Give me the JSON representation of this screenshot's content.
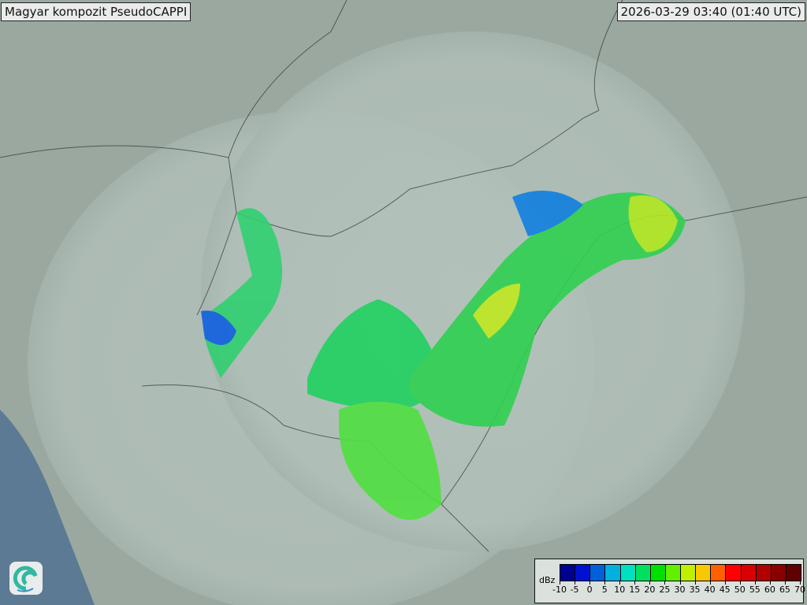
{
  "title": "Magyar kompozit  PseudoCAPPI",
  "timestamp": "2026-03-29 03:40 (01:40 UTC)",
  "legend": {
    "unit": "dBz",
    "ticks": [
      "-10",
      "-5",
      "0",
      "5",
      "10",
      "15",
      "20",
      "25",
      "30",
      "35",
      "40",
      "45",
      "50",
      "55",
      "60",
      "65",
      "70"
    ],
    "colors": [
      "#000090",
      "#0010d0",
      "#0060d8",
      "#00b0e0",
      "#00e0c0",
      "#00e060",
      "#00e000",
      "#60f000",
      "#c0f000",
      "#f8c800",
      "#ff6000",
      "#ff0000",
      "#d80000",
      "#b00000",
      "#880000",
      "#600000"
    ]
  },
  "logo_icon": "swirl-logo-icon"
}
